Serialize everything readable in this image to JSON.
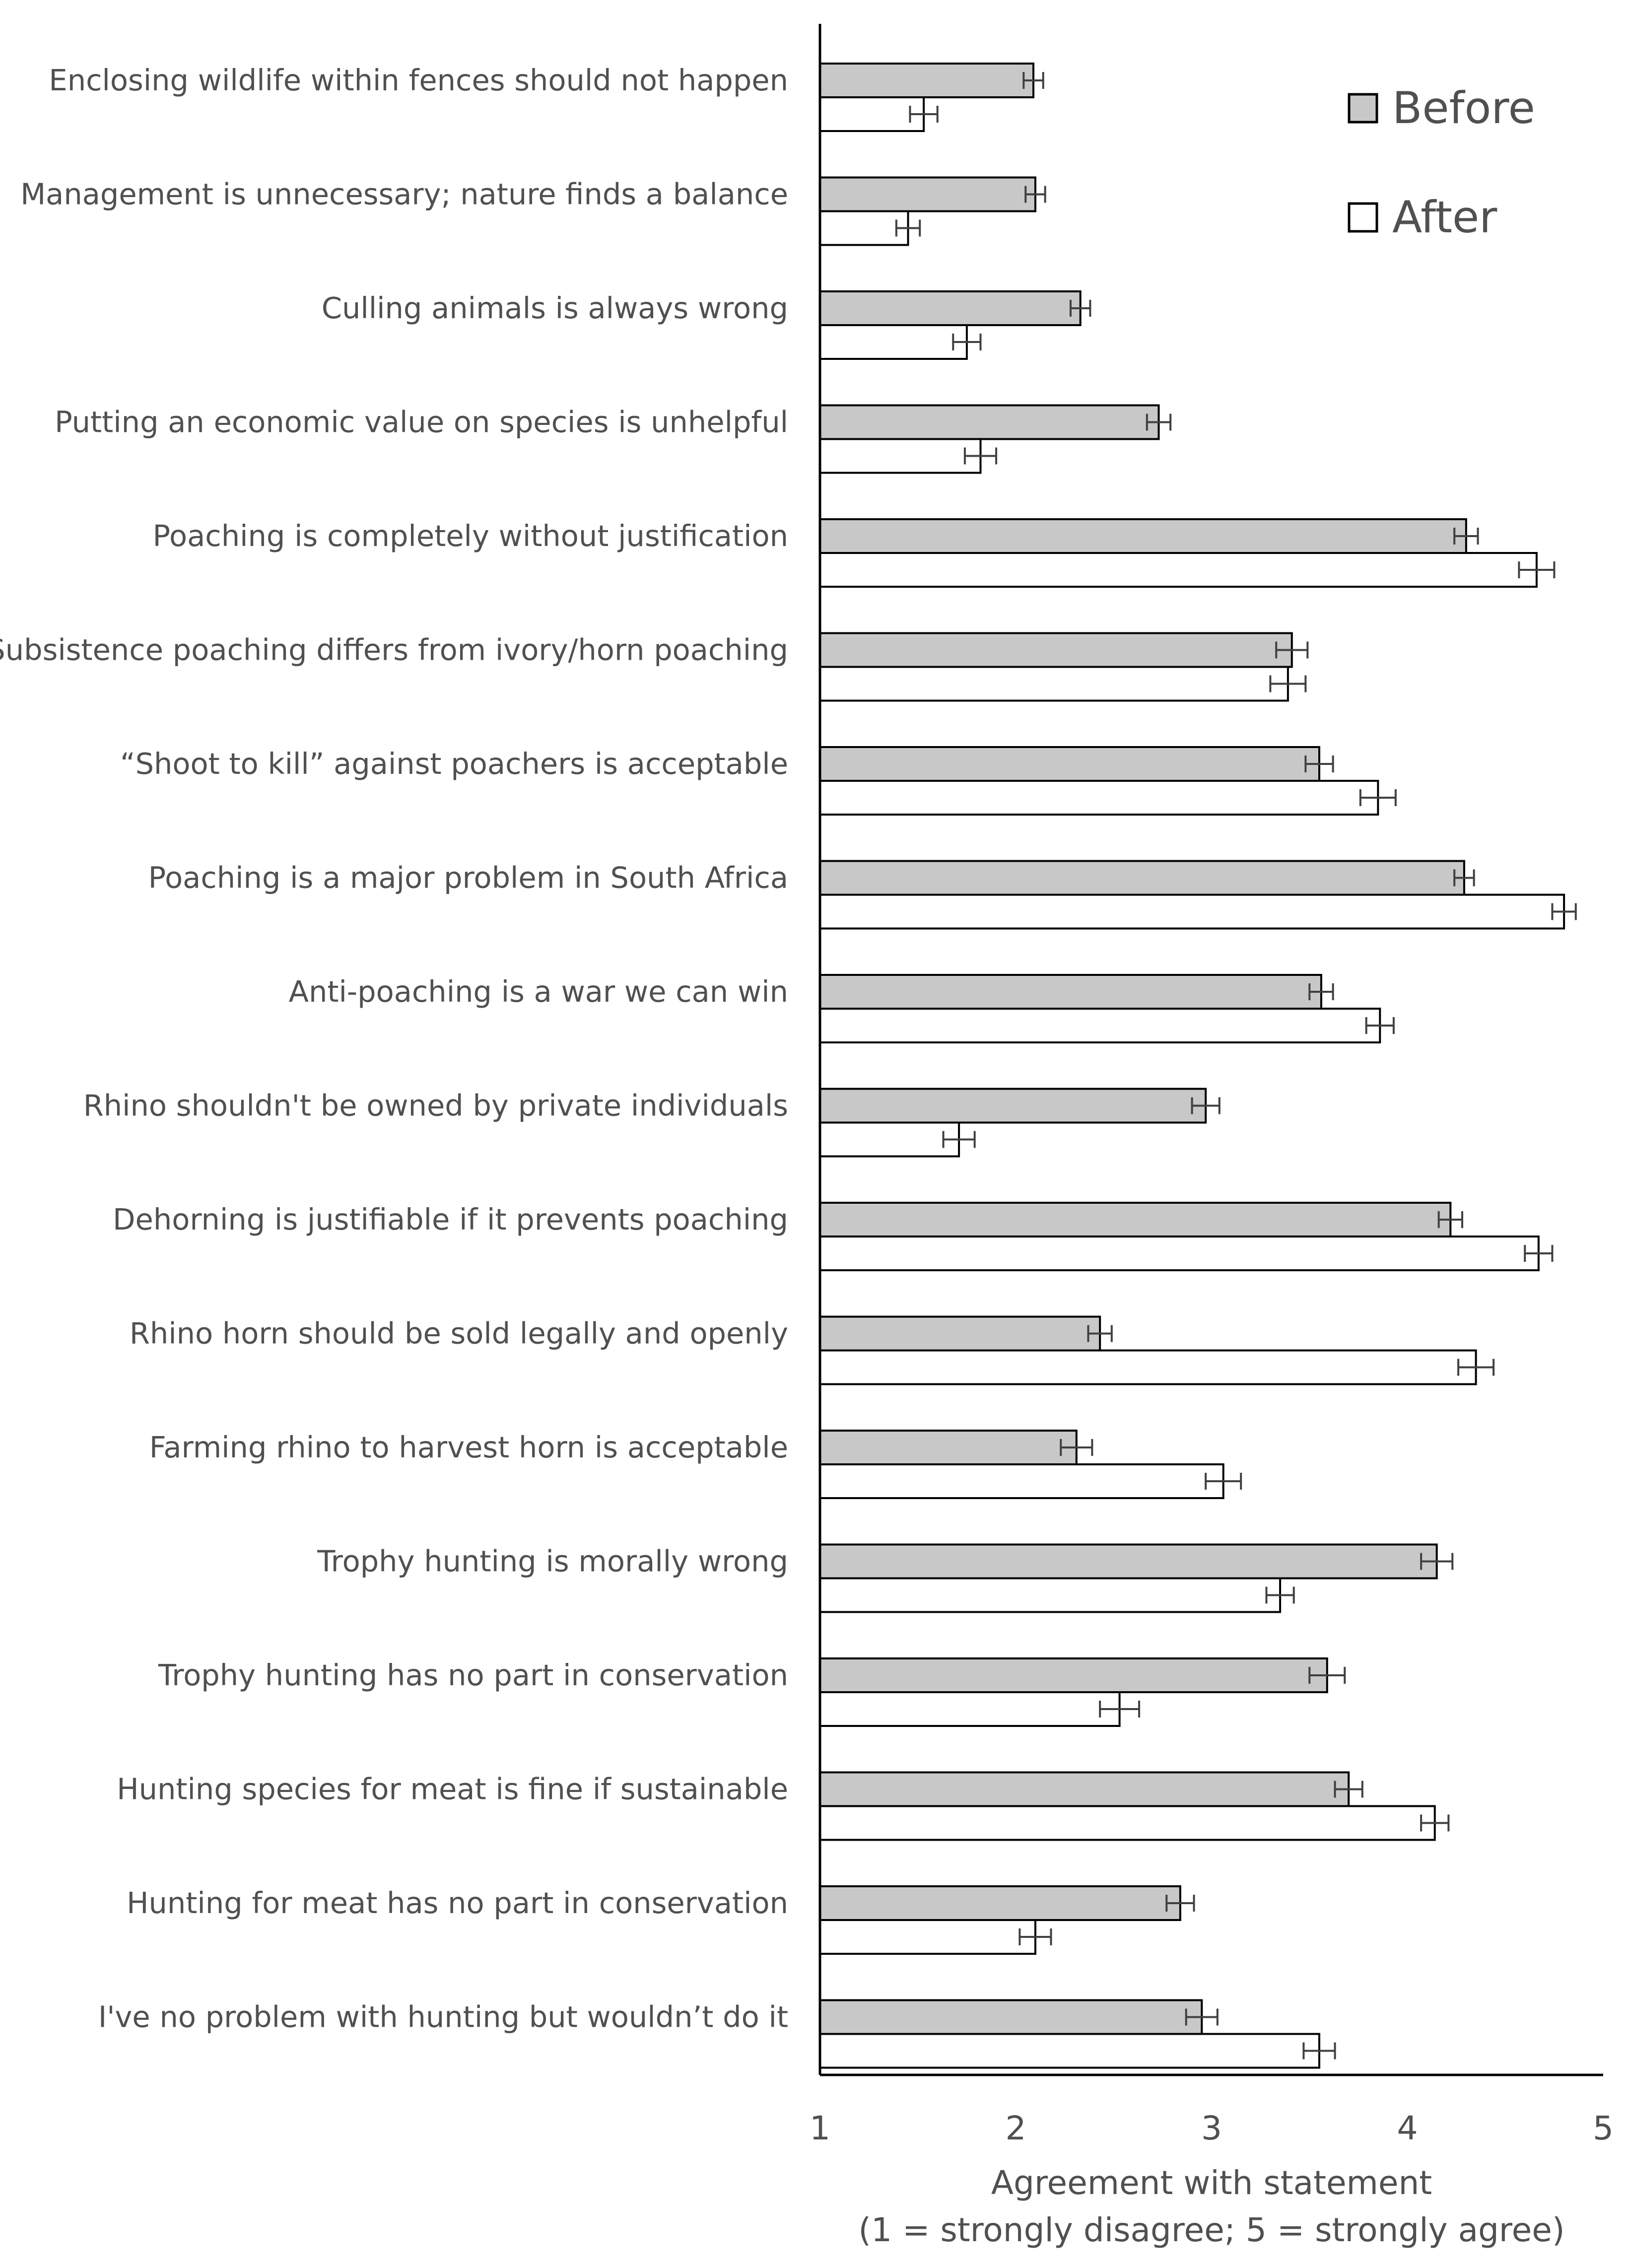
{
  "chart_data": {
    "type": "bar",
    "orientation": "horizontal",
    "title": "",
    "xlabel": "Agreement with statement",
    "xlabel_sub": "(1 = strongly disagree; 5 = strongly agree)",
    "xlim": [
      1,
      5
    ],
    "xticks": [
      "1",
      "2",
      "3",
      "4",
      "5"
    ],
    "categories": [
      "Enclosing wildlife within fences should not happen",
      "Management is unnecessary; nature finds a balance",
      "Culling animals is always wrong",
      "Putting an economic value on species is unhelpful",
      "Poaching is completely without justification",
      "Subsistence poaching differs from ivory/horn poaching",
      "“Shoot to kill” against poachers is acceptable",
      "Poaching is a major problem in South Africa",
      "Anti-poaching is a war we can win",
      "Rhino shouldn't be owned by private individuals",
      "Dehorning is justifiable if it prevents poaching",
      "Rhino horn should be sold legally and openly",
      "Farming rhino to harvest horn is acceptable",
      "Trophy hunting is morally wrong",
      "Trophy hunting has no part in conservation",
      "Hunting species for meat is fine if sustainable",
      "Hunting for meat has no part in conservation",
      "I've no problem with hunting but wouldn’t do it"
    ],
    "series": [
      {
        "name": "Before",
        "color": "#c8c8c8",
        "values": [
          2.09,
          2.1,
          2.33,
          2.73,
          4.3,
          3.41,
          3.55,
          4.29,
          3.56,
          2.97,
          4.22,
          2.43,
          2.31,
          4.15,
          3.59,
          3.7,
          2.84,
          2.95
        ],
        "errors": [
          0.05,
          0.05,
          0.05,
          0.06,
          0.06,
          0.08,
          0.07,
          0.05,
          0.06,
          0.07,
          0.06,
          0.06,
          0.08,
          0.08,
          0.09,
          0.07,
          0.07,
          0.08
        ]
      },
      {
        "name": "After",
        "color": "#ffffff",
        "values": [
          1.53,
          1.45,
          1.75,
          1.82,
          4.66,
          3.39,
          3.85,
          4.8,
          3.86,
          1.71,
          4.67,
          4.35,
          3.06,
          3.35,
          2.53,
          4.14,
          2.1,
          3.55
        ],
        "errors": [
          0.07,
          0.06,
          0.07,
          0.08,
          0.09,
          0.09,
          0.09,
          0.06,
          0.07,
          0.08,
          0.07,
          0.09,
          0.09,
          0.07,
          0.1,
          0.07,
          0.08,
          0.08
        ]
      }
    ],
    "legend_position": "top-right",
    "grid": false
  },
  "colors": {
    "axis": "#000000",
    "text": "#505050",
    "before_fill": "#c8c8c8",
    "after_fill": "#ffffff",
    "error_bar": "#404040"
  }
}
